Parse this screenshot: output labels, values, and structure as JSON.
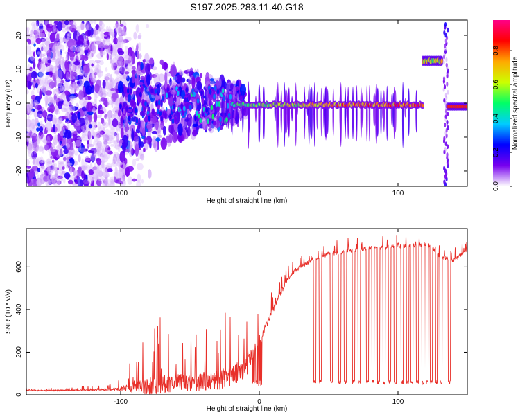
{
  "chart_data": [
    {
      "type": "heatmap",
      "title": "S197.2025.283.11.40.G18",
      "xlabel": "Height of straight line (km)",
      "ylabel": "Frequency (Hz)",
      "xlim": [
        -168,
        150
      ],
      "ylim": [
        -24.5,
        24.5
      ],
      "x_ticks": [
        -100,
        0,
        100
      ],
      "x_tick_labels": [
        "-100",
        "0",
        "100"
      ],
      "y_ticks": [
        -20,
        -10,
        0,
        10,
        20
      ],
      "y_tick_labels": [
        "-20",
        "-10",
        "0",
        "10",
        "20"
      ],
      "colorbar": {
        "label": "Normalized spectral amplitude",
        "range": [
          0,
          0.98
        ],
        "ticks": [
          0,
          0.2,
          0.4,
          0.6,
          0.8
        ],
        "tick_labels": [
          "0.0",
          "0.2",
          "0.4",
          "0.6",
          "0.8"
        ],
        "colors": [
          "#ffffff",
          "#7700ee",
          "#0000ff",
          "#00ccff",
          "#00ff66",
          "#ccff00",
          "#ffaa00",
          "#ff0000",
          "#ff0088"
        ]
      },
      "features": [
        {
          "name": "scattered low-amplitude noise",
          "x_range": [
            -168,
            -95
          ],
          "freq_range": [
            -24,
            24
          ],
          "amplitude": 0.1
        },
        {
          "name": "carrier tone",
          "x_range": [
            -100,
            118
          ],
          "freq_center": -0.5,
          "amplitude_start": 0.2,
          "amplitude_end": 0.85
        },
        {
          "name": "shifted carrier",
          "x_range": [
            118,
            132
          ],
          "freq_center": 12.5,
          "amplitude": 0.7
        },
        {
          "name": "vertical streak",
          "x_range": [
            133,
            136
          ],
          "freq_range": [
            -24,
            24
          ],
          "amplitude": 0.1
        },
        {
          "name": "recovered carrier",
          "x_range": [
            136,
            150
          ],
          "freq_center": -1,
          "amplitude": 0.85
        }
      ]
    },
    {
      "type": "line",
      "title": "",
      "xlabel": "Height of straight line (km)",
      "ylabel": "SNR (10 * v/v)",
      "xlim": [
        -168,
        150
      ],
      "ylim": [
        0,
        780
      ],
      "x_ticks": [
        -100,
        0,
        100
      ],
      "x_tick_labels": [
        "-100",
        "0",
        "100"
      ],
      "y_ticks": [
        0,
        200,
        400,
        600
      ],
      "y_tick_labels": [
        "0",
        "200",
        "400",
        "600"
      ],
      "series": [
        {
          "name": "SNR",
          "color": "#e8302a",
          "x": [
            -168,
            -150,
            -130,
            -110,
            -100,
            -90,
            -80,
            -70,
            -60,
            -50,
            -40,
            -30,
            -20,
            -10,
            0,
            5,
            10,
            15,
            20,
            25,
            30,
            35,
            40,
            45,
            50,
            60,
            70,
            80,
            90,
            100,
            110,
            120,
            125,
            130,
            140,
            150
          ],
          "baseline": [
            20,
            20,
            22,
            24,
            28,
            35,
            40,
            50,
            60,
            55,
            60,
            70,
            90,
            120,
            250,
            330,
            400,
            470,
            540,
            580,
            600,
            620,
            640,
            650,
            660,
            670,
            680,
            690,
            690,
            700,
            700,
            710,
            690,
            650,
            630,
            680
          ],
          "spike_amplitude": [
            10,
            10,
            12,
            15,
            40,
            100,
            180,
            200,
            160,
            150,
            170,
            190,
            220,
            180,
            120,
            80,
            60,
            50,
            40,
            40,
            40,
            40,
            40,
            40,
            40,
            40,
            40,
            40,
            40,
            40,
            40,
            40,
            40,
            40,
            40,
            30
          ],
          "dropouts_x": [
            40,
            44,
            52,
            58,
            62,
            68,
            72,
            78,
            82,
            86,
            90,
            94,
            98,
            103,
            107,
            110,
            114,
            118,
            121,
            124,
            128,
            131,
            137
          ],
          "dropout_level": 50
        }
      ]
    }
  ]
}
